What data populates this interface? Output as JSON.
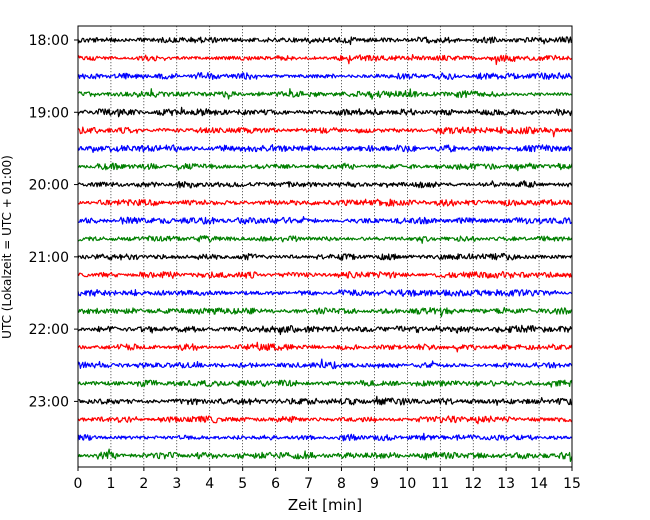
{
  "chart_data": {
    "type": "line",
    "title": "",
    "xlabel": "Zeit  [min]",
    "ylabel": "UTC (Lokalzeit = UTC + 01:00)",
    "xlim": [
      0,
      15
    ],
    "x_ticks": [
      "0",
      "1",
      "2",
      "3",
      "4",
      "5",
      "6",
      "7",
      "8",
      "9",
      "10",
      "11",
      "12",
      "13",
      "14",
      "15"
    ],
    "y_ticks": [
      "18:00",
      "19:00",
      "20:00",
      "21:00",
      "22:00",
      "23:00"
    ],
    "grid": "vertical",
    "trace_interval_minutes": 15,
    "trace_start_times": [
      "18:00",
      "18:15",
      "18:30",
      "18:45",
      "19:00",
      "19:15",
      "19:30",
      "19:45",
      "20:00",
      "20:15",
      "20:30",
      "20:45",
      "21:00",
      "21:15",
      "21:30",
      "21:45",
      "22:00",
      "22:15",
      "22:30",
      "22:45",
      "23:00",
      "23:15",
      "23:30",
      "23:45"
    ],
    "trace_colors": [
      "#000000",
      "#ff0000",
      "#0000ff",
      "#008000"
    ]
  }
}
